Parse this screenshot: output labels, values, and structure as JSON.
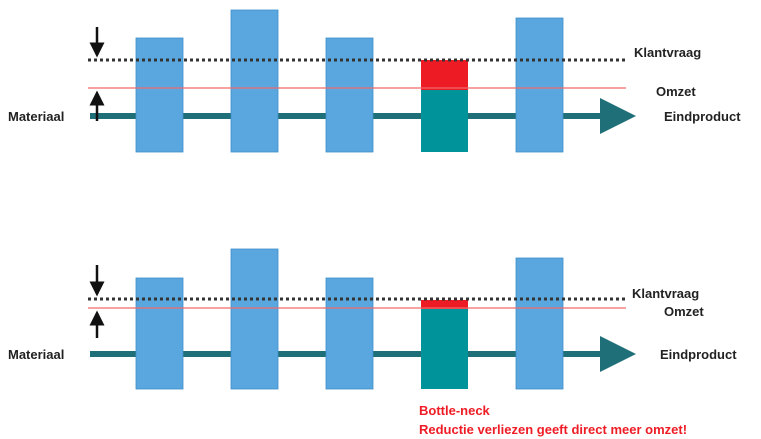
{
  "colors": {
    "machine": "#5aa7df",
    "machine_edge": "#3f8fcb",
    "bottleneck": "#00939a",
    "loss": "#ed1c24",
    "flow": "#1f6f78",
    "demand": "#333333",
    "revenue": "#f06a6a",
    "note": "#ee1c25"
  },
  "diagrams": [
    {
      "material_label": "Materiaal",
      "product_label": "Eindproduct",
      "demand_label": "Klantvraag",
      "revenue_label": "Omzet"
    },
    {
      "material_label": "Materiaal",
      "product_label": "Eindproduct",
      "demand_label": "Klantvraag",
      "revenue_label": "Omzet"
    }
  ],
  "bottleneck_note": {
    "title": "Bottle-neck",
    "text": "Reductie verliezen geeft direct meer omzet!"
  }
}
